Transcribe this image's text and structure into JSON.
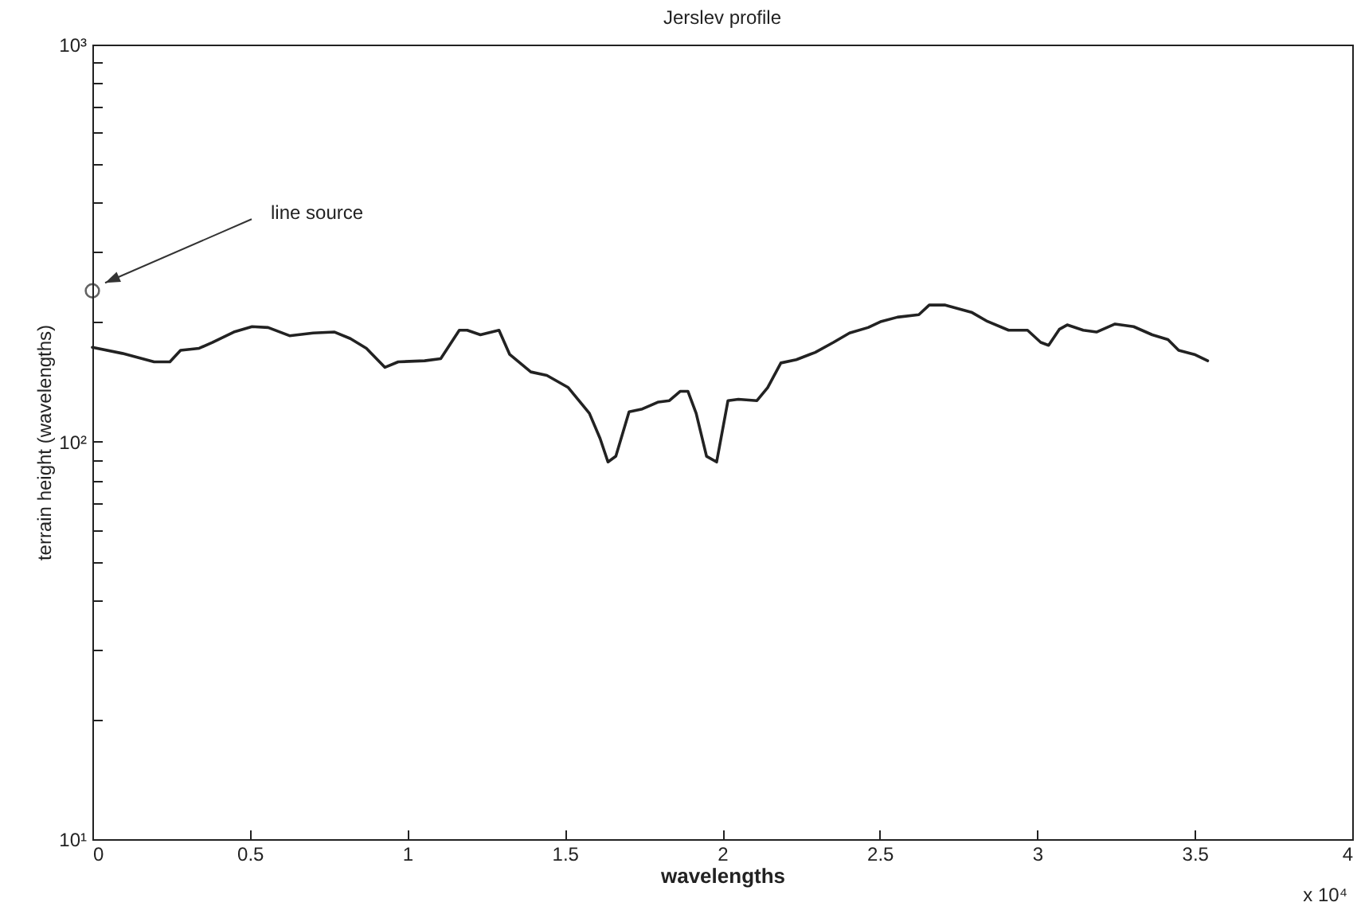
{
  "chart_data": {
    "type": "line",
    "title": "Jerslev profile",
    "xlabel": "wavelengths",
    "ylabel": "terrain height (wavelengths)",
    "log": "y",
    "grid": false,
    "xlim": [
      0,
      4
    ],
    "ylim": [
      10,
      1000
    ],
    "xticks": [
      0,
      0.5,
      1,
      1.5,
      2,
      2.5,
      3,
      3.5,
      4
    ],
    "yticks": [
      {
        "value": 10,
        "label": "10¹"
      },
      {
        "value": 20,
        "label": null
      },
      {
        "value": 30,
        "label": null
      },
      {
        "value": 40,
        "label": null
      },
      {
        "value": 50,
        "label": null
      },
      {
        "value": 60,
        "label": null
      },
      {
        "value": 70,
        "label": null
      },
      {
        "value": 80,
        "label": null
      },
      {
        "value": 90,
        "label": null
      },
      {
        "value": 100,
        "label": "10²"
      },
      {
        "value": 200,
        "label": null
      },
      {
        "value": 300,
        "label": null
      },
      {
        "value": 400,
        "label": null
      },
      {
        "value": 500,
        "label": null
      },
      {
        "value": 600,
        "label": null
      },
      {
        "value": 700,
        "label": null
      },
      {
        "value": 800,
        "label": null
      },
      {
        "value": 900,
        "label": null
      },
      {
        "value": 1000,
        "label": "10³"
      }
    ],
    "annotations": [
      "x 10⁴",
      "line source"
    ],
    "series": [
      {
        "color": "#222222",
        "marker": "none",
        "line_style": "solid",
        "x": [
          0,
          0.095,
          0.196,
          0.246,
          0.28,
          0.339,
          0.381,
          0.449,
          0.507,
          0.558,
          0.626,
          0.701,
          0.769,
          0.819,
          0.87,
          0.929,
          0.971,
          1.055,
          1.106,
          1.165,
          1.19,
          1.232,
          1.291,
          1.325,
          1.392,
          1.443,
          1.511,
          1.578,
          1.612,
          1.637,
          1.662,
          1.704,
          1.746,
          1.797,
          1.832,
          1.866,
          1.891,
          1.917,
          1.95,
          1.982,
          2.018,
          2.051,
          2.11,
          2.144,
          2.186,
          2.235,
          2.295,
          2.353,
          2.404,
          2.463,
          2.505,
          2.556,
          2.624,
          2.657,
          2.708,
          2.791,
          2.842,
          2.909,
          2.969,
          3.011,
          3.036,
          3.07,
          3.095,
          3.146,
          3.188,
          3.247,
          3.306,
          3.365,
          3.415,
          3.449,
          3.499,
          3.541
        ],
        "values": [
          173,
          167,
          159,
          159,
          170,
          172,
          178,
          189,
          195,
          194,
          185,
          188,
          189,
          182,
          172,
          154,
          159,
          160,
          162,
          191,
          191,
          186,
          191,
          166,
          150,
          147,
          137,
          118,
          102,
          89,
          92,
          119,
          121,
          126,
          127,
          134,
          134,
          118,
          92,
          89,
          127,
          128,
          127,
          137,
          158,
          161,
          168,
          178,
          188,
          194,
          201,
          206,
          209,
          221,
          221,
          212,
          201,
          191,
          191,
          178,
          175,
          192,
          197,
          191,
          189,
          198,
          195,
          186,
          181,
          170,
          166,
          160
        ]
      },
      {
        "type": "scatter",
        "color": "#222222",
        "marker": "circle",
        "x": [
          0
        ],
        "values": [
          240
        ]
      }
    ]
  }
}
